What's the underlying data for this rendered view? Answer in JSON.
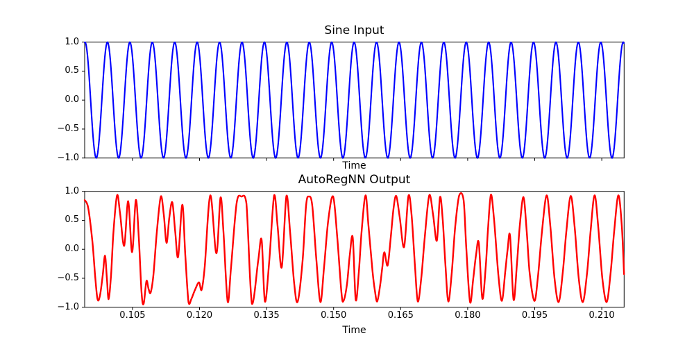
{
  "figure": {
    "background": "#ffffff",
    "spine_color": "#000000"
  },
  "chart_data": [
    {
      "type": "line",
      "title": "Sine Input",
      "xlabel": "Time",
      "ylabel": "",
      "grid": false,
      "legend": null,
      "xlim": [
        0.0943,
        0.215
      ],
      "ylim": [
        -1.0,
        1.0
      ],
      "yticks": {
        "values": [
          1.0,
          0.5,
          0.0,
          -0.5,
          -1.0
        ],
        "labels": [
          "1.0",
          "0.5",
          "0.0",
          "−0.5",
          "−1.0"
        ]
      },
      "xticks": {
        "values": [
          0.105,
          0.12,
          0.135,
          0.15,
          0.165,
          0.18,
          0.195,
          0.21
        ],
        "labels": [],
        "labels_visible": false
      },
      "series": [
        {
          "name": "sine_input",
          "color": "#0000ff",
          "line_width": 2.1,
          "waveform": "sine",
          "amplitude": 1.0,
          "first_peak_t": 0.09438,
          "last_peak_t": 0.2148,
          "periods": 24
        }
      ]
    },
    {
      "type": "line",
      "title": "AutoRegNN Output",
      "xlabel": "Time",
      "ylabel": "",
      "grid": false,
      "legend": null,
      "xlim": [
        0.0943,
        0.215
      ],
      "ylim": [
        -1.0,
        1.0
      ],
      "yticks": {
        "values": [
          1.0,
          0.5,
          0.0,
          -0.5,
          -1.0
        ],
        "labels": [
          "1.0",
          "0.5",
          "0.0",
          "−0.5",
          "−1.0"
        ]
      },
      "xticks": {
        "values": [
          0.105,
          0.12,
          0.135,
          0.15,
          0.165,
          0.18,
          0.195,
          0.21
        ],
        "labels": [
          "0.105",
          "0.120",
          "0.135",
          "0.150",
          "0.165",
          "0.180",
          "0.195",
          "0.210"
        ],
        "labels_visible": true
      },
      "series": [
        {
          "name": "autoregnn_output",
          "color": "#ff0000",
          "line_width": 2.4,
          "points": [
            [
              0.0943,
              0.85
            ],
            [
              0.09508,
              0.72
            ],
            [
              0.09601,
              0.15
            ],
            [
              0.09663,
              -0.45
            ],
            [
              0.09717,
              -0.86
            ],
            [
              0.09772,
              -0.8
            ],
            [
              0.09834,
              -0.45
            ],
            [
              0.09885,
              -0.11
            ],
            [
              0.09927,
              -0.5
            ],
            [
              0.09966,
              -0.86
            ],
            [
              0.1002,
              -0.45
            ],
            [
              0.10074,
              0.3
            ],
            [
              0.10155,
              0.93
            ],
            [
              0.10222,
              0.62
            ],
            [
              0.10315,
              0.06
            ],
            [
              0.10404,
              0.83
            ],
            [
              0.10491,
              -0.05
            ],
            [
              0.10574,
              0.85
            ],
            [
              0.10641,
              0.2
            ],
            [
              0.10703,
              -0.75
            ],
            [
              0.1075,
              -0.94
            ],
            [
              0.10812,
              -0.55
            ],
            [
              0.10859,
              -0.68
            ],
            [
              0.10905,
              -0.75
            ],
            [
              0.10967,
              -0.45
            ],
            [
              0.11045,
              0.3
            ],
            [
              0.11133,
              0.91
            ],
            [
              0.112,
              0.6
            ],
            [
              0.11262,
              0.11
            ],
            [
              0.11324,
              0.55
            ],
            [
              0.11391,
              0.81
            ],
            [
              0.11456,
              0.3
            ],
            [
              0.11522,
              -0.13
            ],
            [
              0.11615,
              0.77
            ],
            [
              0.11682,
              -0.1
            ],
            [
              0.11754,
              -0.92
            ],
            [
              0.11821,
              -0.85
            ],
            [
              0.11899,
              -0.7
            ],
            [
              0.11987,
              -0.57
            ],
            [
              0.12046,
              -0.7
            ],
            [
              0.12116,
              -0.3
            ],
            [
              0.12241,
              0.93
            ],
            [
              0.12376,
              -0.07
            ],
            [
              0.12469,
              0.89
            ],
            [
              0.12536,
              0.3
            ],
            [
              0.12629,
              -0.9
            ],
            [
              0.12706,
              -0.3
            ],
            [
              0.12831,
              0.8
            ],
            [
              0.12939,
              0.91
            ],
            [
              0.13048,
              0.8
            ],
            [
              0.13172,
              -0.94
            ],
            [
              0.13312,
              -0.2
            ],
            [
              0.1339,
              0.16
            ],
            [
              0.13463,
              -0.9
            ],
            [
              0.1356,
              -0.2
            ],
            [
              0.13669,
              0.93
            ],
            [
              0.13747,
              0.4
            ],
            [
              0.1384,
              -0.31
            ],
            [
              0.13944,
              0.92
            ],
            [
              0.14026,
              0.3
            ],
            [
              0.14119,
              -0.6
            ],
            [
              0.14197,
              -0.9
            ],
            [
              0.14306,
              -0.2
            ],
            [
              0.14383,
              0.75
            ],
            [
              0.14446,
              0.91
            ],
            [
              0.14523,
              0.75
            ],
            [
              0.14616,
              -0.2
            ],
            [
              0.14705,
              -0.91
            ],
            [
              0.14787,
              -0.3
            ],
            [
              0.1488,
              0.5
            ],
            [
              0.14989,
              0.91
            ],
            [
              0.15082,
              0.2
            ],
            [
              0.15175,
              -0.75
            ],
            [
              0.15222,
              -0.89
            ],
            [
              0.153,
              -0.6
            ],
            [
              0.15362,
              -0.1
            ],
            [
              0.15429,
              0.2
            ],
            [
              0.15494,
              -0.87
            ],
            [
              0.15564,
              -0.4
            ],
            [
              0.15626,
              0.3
            ],
            [
              0.15714,
              0.93
            ],
            [
              0.15781,
              0.4
            ],
            [
              0.15869,
              -0.37
            ],
            [
              0.15921,
              -0.7
            ],
            [
              0.15975,
              -0.9
            ],
            [
              0.16045,
              -0.6
            ],
            [
              0.16091,
              -0.3
            ],
            [
              0.16135,
              -0.05
            ],
            [
              0.16208,
              -0.28
            ],
            [
              0.16278,
              0.2
            ],
            [
              0.1634,
              0.7
            ],
            [
              0.16402,
              0.92
            ],
            [
              0.1648,
              0.55
            ],
            [
              0.16577,
              0.04
            ],
            [
              0.16674,
              0.92
            ],
            [
              0.16744,
              0.6
            ],
            [
              0.16821,
              -0.3
            ],
            [
              0.16883,
              -0.9
            ],
            [
              0.16961,
              -0.5
            ],
            [
              0.17039,
              0.2
            ],
            [
              0.1714,
              0.93
            ],
            [
              0.17225,
              0.6
            ],
            [
              0.1731,
              0.15
            ],
            [
              0.1738,
              0.9
            ],
            [
              0.17442,
              0.5
            ],
            [
              0.17504,
              -0.3
            ],
            [
              0.17567,
              -0.9
            ],
            [
              0.17644,
              -0.4
            ],
            [
              0.17722,
              0.4
            ],
            [
              0.1781,
              0.93
            ],
            [
              0.17908,
              0.85
            ],
            [
              0.1797,
              0.0
            ],
            [
              0.18052,
              -0.91
            ],
            [
              0.18125,
              -0.5
            ],
            [
              0.18187,
              -0.1
            ],
            [
              0.18249,
              0.11
            ],
            [
              0.18327,
              -0.85
            ],
            [
              0.18404,
              -0.3
            ],
            [
              0.18451,
              0.3
            ],
            [
              0.18518,
              0.94
            ],
            [
              0.18591,
              0.5
            ],
            [
              0.18689,
              -0.47
            ],
            [
              0.18766,
              -0.89
            ],
            [
              0.18839,
              -0.4
            ],
            [
              0.18894,
              0.0
            ],
            [
              0.18948,
              0.23
            ],
            [
              0.19026,
              -0.87
            ],
            [
              0.19103,
              -0.25
            ],
            [
              0.19165,
              0.4
            ],
            [
              0.19248,
              0.9
            ],
            [
              0.19321,
              0.3
            ],
            [
              0.19387,
              -0.41
            ],
            [
              0.19491,
              -0.89
            ],
            [
              0.19569,
              -0.5
            ],
            [
              0.19662,
              0.3
            ],
            [
              0.19766,
              0.93
            ],
            [
              0.19849,
              0.4
            ],
            [
              0.19942,
              -0.5
            ],
            [
              0.20035,
              -0.91
            ],
            [
              0.20128,
              -0.4
            ],
            [
              0.20206,
              0.3
            ],
            [
              0.20304,
              0.92
            ],
            [
              0.20392,
              0.4
            ],
            [
              0.20485,
              -0.5
            ],
            [
              0.20578,
              -0.91
            ],
            [
              0.20672,
              -0.4
            ],
            [
              0.20749,
              0.3
            ],
            [
              0.20838,
              0.93
            ],
            [
              0.2092,
              0.4
            ],
            [
              0.21013,
              -0.5
            ],
            [
              0.21111,
              -0.91
            ],
            [
              0.21199,
              -0.4
            ],
            [
              0.21277,
              0.3
            ],
            [
              0.2137,
              0.93
            ],
            [
              0.21448,
              0.4
            ],
            [
              0.21499,
              -0.43
            ]
          ]
        }
      ]
    }
  ]
}
